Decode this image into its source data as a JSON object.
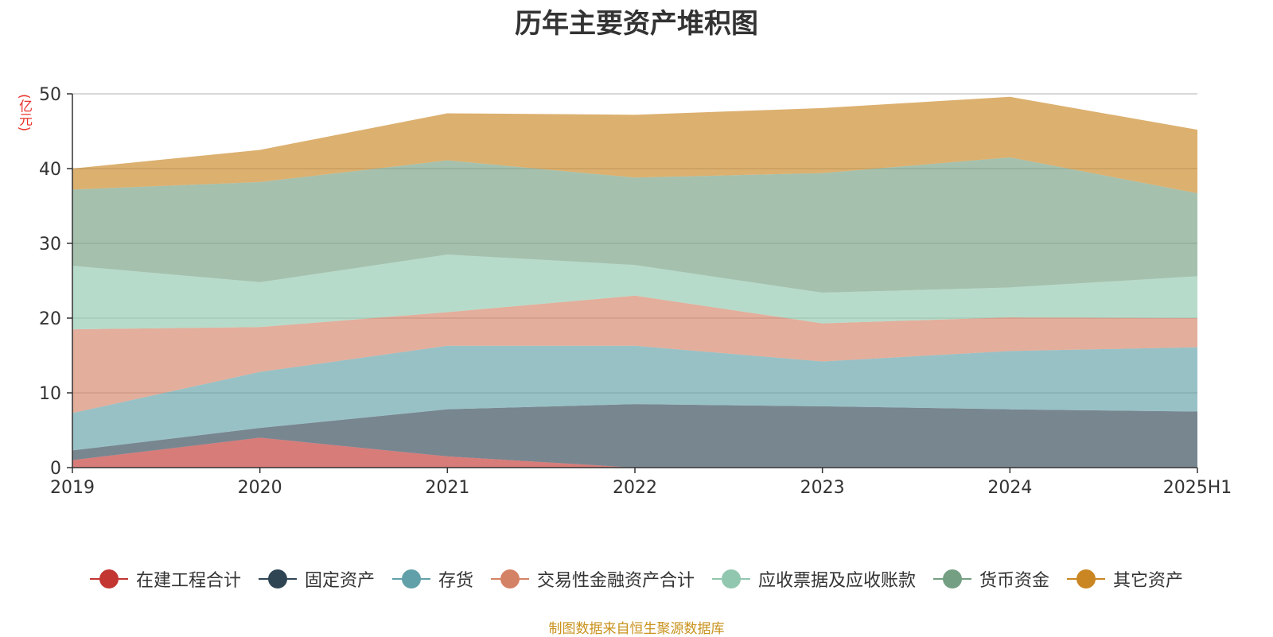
{
  "chart_data": {
    "type": "area",
    "stacked": true,
    "title": "历年主要资产堆积图",
    "ylabel": "(亿元)",
    "ylim": [
      0,
      50
    ],
    "yticks": [
      "0",
      "10",
      "20",
      "30",
      "40",
      "50"
    ],
    "categories": [
      "2019",
      "2020",
      "2021",
      "2022",
      "2023",
      "2024",
      "2025H1"
    ],
    "grid": true,
    "legend_position": "bottom",
    "series": [
      {
        "name": "在建工程合计",
        "color": "#c23531",
        "values": [
          1.0,
          4.0,
          1.5,
          0.0,
          0.0,
          0.0,
          0.0
        ]
      },
      {
        "name": "固定资产",
        "color": "#2f4554",
        "values": [
          1.3,
          1.3,
          6.3,
          8.5,
          8.2,
          7.8,
          7.5
        ]
      },
      {
        "name": "存货",
        "color": "#61a0a8",
        "values": [
          5.0,
          7.5,
          8.5,
          7.8,
          6.0,
          7.8,
          8.6
        ]
      },
      {
        "name": "交易性金融资产合计",
        "color": "#d48265",
        "values": [
          11.2,
          6.0,
          4.5,
          6.7,
          5.1,
          4.5,
          3.9
        ]
      },
      {
        "name": "应收票据及应收账款",
        "color": "#91c7ae",
        "values": [
          8.5,
          6.0,
          7.7,
          4.1,
          4.1,
          4.0,
          5.6
        ]
      },
      {
        "name": "货币资金",
        "color": "#749f83",
        "values": [
          10.2,
          13.4,
          12.6,
          11.7,
          16.0,
          17.4,
          11.1
        ]
      },
      {
        "name": "其它资产",
        "color": "#ca8622",
        "values": [
          2.8,
          4.3,
          6.3,
          8.4,
          8.7,
          8.1,
          8.5
        ]
      }
    ]
  },
  "footer": {
    "source": "制图数据来自恒生聚源数据库"
  }
}
